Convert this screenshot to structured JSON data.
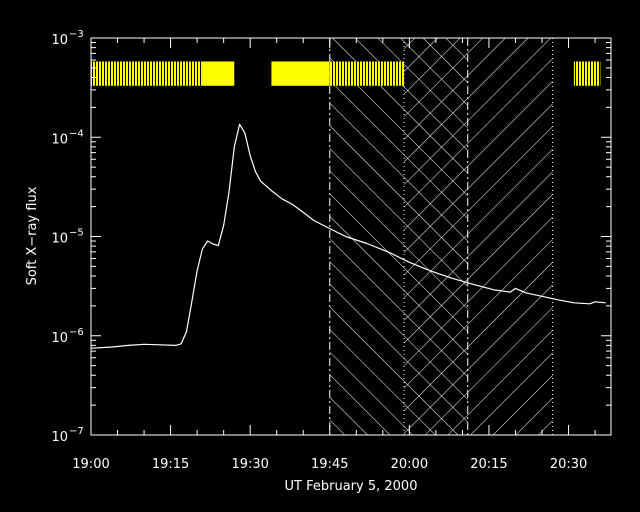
{
  "chart_data": {
    "type": "line",
    "title": "",
    "xlabel": "UT February 5, 2000",
    "ylabel": "Soft X−ray flux",
    "x_unit": "minutes",
    "xlim": [
      "19:00",
      "20:38"
    ],
    "ylim": [
      1e-07,
      0.001
    ],
    "y_scale": "log",
    "grid": false,
    "x_ticks": [
      "19:00",
      "19:15",
      "19:30",
      "19:45",
      "20:00",
      "20:15",
      "20:30"
    ],
    "y_ticks": [
      {
        "value": 1e-07,
        "base": "10",
        "exp": "−7"
      },
      {
        "value": 1e-06,
        "base": "10",
        "exp": "−6"
      },
      {
        "value": 1e-05,
        "base": "10",
        "exp": "−5"
      },
      {
        "value": 0.0001,
        "base": "10",
        "exp": "−4"
      },
      {
        "value": 0.001,
        "base": "10",
        "exp": "−3"
      }
    ],
    "series": [
      {
        "name": "",
        "color": "#ffffff",
        "points": [
          [
            "19:00",
            7.5e-07
          ],
          [
            "19:04",
            7.7e-07
          ],
          [
            "19:07",
            8e-07
          ],
          [
            "19:10",
            8.2e-07
          ],
          [
            "19:13",
            8.1e-07
          ],
          [
            "19:16",
            8e-07
          ],
          [
            "19:17",
            8.3e-07
          ],
          [
            "19:18",
            1.1e-06
          ],
          [
            "19:19",
            2.2e-06
          ],
          [
            "19:20",
            4.5e-06
          ],
          [
            "19:21",
            7.5e-06
          ],
          [
            "19:22",
            9e-06
          ],
          [
            "19:23",
            8.4e-06
          ],
          [
            "19:24",
            8.1e-06
          ],
          [
            "19:25",
            1.3e-05
          ],
          [
            "19:26",
            2.8e-05
          ],
          [
            "19:27",
            8e-05
          ],
          [
            "19:28",
            0.000135
          ],
          [
            "19:29",
            0.00011
          ],
          [
            "19:30",
            6.5e-05
          ],
          [
            "19:31",
            4.5e-05
          ],
          [
            "19:32",
            3.6e-05
          ],
          [
            "19:34",
            2.9e-05
          ],
          [
            "19:36",
            2.4e-05
          ],
          [
            "19:38",
            2.1e-05
          ],
          [
            "19:40",
            1.75e-05
          ],
          [
            "19:42",
            1.45e-05
          ],
          [
            "19:45",
            1.2e-05
          ],
          [
            "19:48",
            1e-05
          ],
          [
            "19:52",
            8.5e-06
          ],
          [
            "19:56",
            7e-06
          ],
          [
            "20:00",
            5.5e-06
          ],
          [
            "20:04",
            4.5e-06
          ],
          [
            "20:08",
            3.8e-06
          ],
          [
            "20:12",
            3.3e-06
          ],
          [
            "20:16",
            2.9e-06
          ],
          [
            "20:19",
            2.75e-06
          ],
          [
            "20:20",
            3e-06
          ],
          [
            "20:22",
            2.7e-06
          ],
          [
            "20:25",
            2.5e-06
          ],
          [
            "20:28",
            2.3e-06
          ],
          [
            "20:31",
            2.15e-06
          ],
          [
            "20:34",
            2.1e-06
          ],
          [
            "20:35",
            2.2e-06
          ],
          [
            "20:37",
            2.15e-06
          ]
        ]
      }
    ],
    "observation_bars": {
      "color": "#ffff00",
      "y_range": [
        0.00033,
        0.00058
      ],
      "segments": [
        {
          "start": "19:00",
          "end": "19:21",
          "style": "striped"
        },
        {
          "start": "19:21",
          "end": "19:27",
          "style": "solid"
        },
        {
          "start": "19:34",
          "end": "19:45",
          "style": "solid"
        },
        {
          "start": "19:45",
          "end": "19:59",
          "style": "striped"
        },
        {
          "start": "20:31",
          "end": "20:36",
          "style": "striped"
        }
      ]
    },
    "vertical_lines": [
      {
        "x": "19:45",
        "style": "dash-dot"
      },
      {
        "x": "19:59",
        "style": "dotted"
      },
      {
        "x": "20:11",
        "style": "dash-dot"
      },
      {
        "x": "20:27",
        "style": "dotted"
      }
    ],
    "hatched_regions": [
      {
        "start": "19:45",
        "end": "19:59",
        "pattern": "backslash"
      },
      {
        "start": "19:59",
        "end": "20:11",
        "pattern": "cross"
      },
      {
        "start": "20:11",
        "end": "20:27",
        "pattern": "slash"
      }
    ]
  }
}
